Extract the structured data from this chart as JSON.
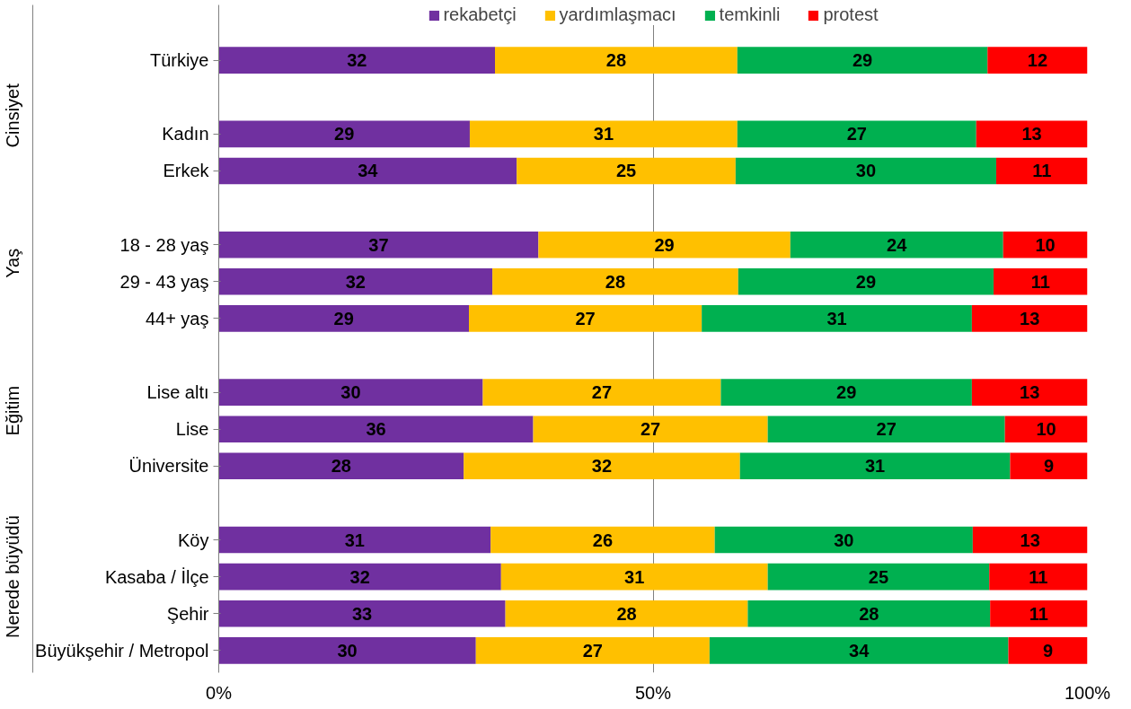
{
  "chart_data": {
    "type": "bar",
    "orientation": "horizontal",
    "stacked": true,
    "categories": [
      "Türkiye",
      null,
      "Kadın",
      "Erkek",
      null,
      "18 - 28 yaş",
      "29 - 43 yaş",
      "44+ yaş",
      null,
      "Lise altı",
      "Lise",
      "Üniversite",
      null,
      "Köy",
      "Kasaba / İlçe",
      "Şehir",
      "Büyükşehir / Metropol"
    ],
    "series": [
      {
        "name": "rekabetçi",
        "color": "#7030a0",
        "values": [
          31.8,
          null,
          28.9,
          34.3,
          null,
          36.8,
          31.5,
          28.8,
          null,
          30.4,
          36.2,
          28.2,
          null,
          31.3,
          32.5,
          33.0,
          29.6
        ],
        "value_labels": [
          "32",
          null,
          "29",
          "34",
          null,
          "37",
          "32",
          "29",
          null,
          "30",
          "36",
          "28",
          null,
          "31",
          "32",
          "33",
          "30"
        ]
      },
      {
        "name": "yardımlaşmacı",
        "color": "#ffc000",
        "values": [
          27.9,
          null,
          30.8,
          25.2,
          null,
          29.0,
          28.3,
          26.8,
          null,
          27.4,
          27.0,
          31.8,
          null,
          25.8,
          30.7,
          27.9,
          26.9
        ],
        "value_labels": [
          "28",
          null,
          "31",
          "25",
          null,
          "29",
          "28",
          "27",
          null,
          "27",
          "27",
          "32",
          null,
          "26",
          "31",
          "28",
          "27"
        ]
      },
      {
        "name": "temkinli",
        "color": "#00b050",
        "values": [
          28.8,
          null,
          27.5,
          30.0,
          null,
          24.5,
          29.4,
          31.1,
          null,
          28.9,
          27.3,
          31.1,
          null,
          29.7,
          25.5,
          27.9,
          34.4
        ],
        "value_labels": [
          "29",
          null,
          "27",
          "30",
          null,
          "24",
          "29",
          "31",
          null,
          "29",
          "27",
          "31",
          null,
          "30",
          "25",
          "28",
          "34"
        ]
      },
      {
        "name": "protest",
        "color": "#ff0000",
        "values": [
          11.5,
          null,
          12.8,
          10.5,
          null,
          9.7,
          10.8,
          13.3,
          null,
          13.3,
          9.5,
          8.9,
          null,
          13.2,
          11.3,
          11.2,
          9.1
        ],
        "value_labels": [
          "12",
          null,
          "13",
          "11",
          null,
          "10",
          "11",
          "13",
          null,
          "13",
          "10",
          "9",
          null,
          "13",
          "11",
          "11",
          "9"
        ]
      }
    ],
    "xlim": [
      0,
      100
    ],
    "xticks": [
      {
        "value": 0,
        "label": "0%"
      },
      {
        "value": 50,
        "label": "50%"
      },
      {
        "value": 100,
        "label": "100%"
      }
    ],
    "grid": "x",
    "legend": "top",
    "annotations": [
      "Cinsiyet",
      "Yaş",
      "Eğitim",
      "Nerede büyüdü"
    ]
  }
}
